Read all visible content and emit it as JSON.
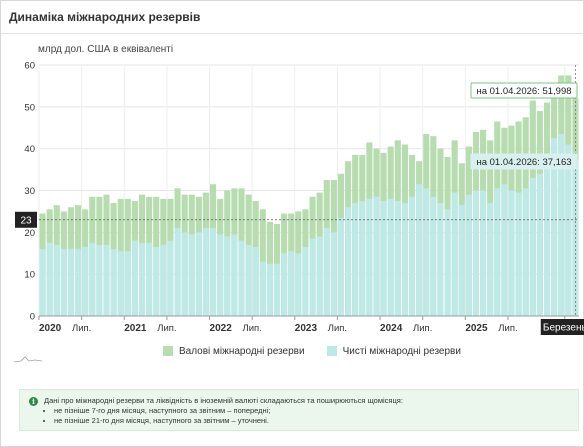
{
  "page": {
    "title": "Динаміка міжнародних резервів",
    "unit_label": "млрд дол. США в еквіваленті"
  },
  "colors": {
    "gross": "#b7dcb0",
    "net": "#bfe9e7",
    "tooltip_gross_border": "#77c77f",
    "tooltip_net_bg": "#d8f1ef",
    "axis_label_dark": "#222222",
    "grid": "#e6e6e6"
  },
  "legend": {
    "gross_label": "Валові міжнародні резерви",
    "net_label": "Чисті міжнародні резерви"
  },
  "tooltips": {
    "gross": "на 01.04.2026: 51,998",
    "net": "на 01.04.2026: 37,163"
  },
  "crosshair": {
    "value_label": "23"
  },
  "note": {
    "icon": "info-icon",
    "intro": "Дані про міжнародні резерви та ліквідність в іноземній валюті складаються та поширюються щомісяця:",
    "bullet1": "не пізніше 7-го дня місяця, наступного за звітним – попередні;",
    "bullet2": "не пізніше 21-го дня місяця, наступного за звітним – уточнені."
  },
  "chart_data": {
    "type": "bar",
    "ylim": [
      0,
      60
    ],
    "yticks": [
      0,
      10,
      20,
      30,
      40,
      50,
      60
    ],
    "ylabel": "млрд дол. США в еквіваленті",
    "grid": true,
    "x_tick_labels": [
      "2020",
      "Лип.",
      "2021",
      "Лип.",
      "2022",
      "Лип.",
      "2023",
      "Лип.",
      "2024",
      "Лип.",
      "2025",
      "Лип.",
      "Березень"
    ],
    "x_tick_months": [
      0,
      6,
      12,
      18,
      24,
      30,
      36,
      42,
      48,
      54,
      60,
      66,
      74
    ],
    "highlighted_tick": "Березень",
    "start_month": "2020-01",
    "series": [
      {
        "name": "Валові міжнародні резерви",
        "values": [
          24.5,
          25.5,
          26.5,
          25.0,
          26.0,
          26.5,
          25.5,
          28.5,
          28.5,
          29.0,
          27.0,
          28.0,
          28.0,
          27.5,
          29.0,
          28.5,
          28.5,
          28.0,
          28.0,
          30.5,
          29.0,
          29.0,
          28.5,
          29.5,
          31.5,
          28.0,
          30.0,
          30.5,
          30.5,
          29.0,
          27.5,
          25.5,
          22.5,
          22.0,
          24.5,
          24.5,
          25.0,
          25.5,
          28.5,
          29.5,
          32.5,
          32.5,
          34.0,
          37.0,
          38.5,
          38.5,
          41.5,
          40.0,
          39.0,
          40.5,
          42.0,
          41.0,
          38.5,
          37.0,
          43.5,
          43.0,
          40.0,
          38.0,
          42.0,
          36.5,
          40.5,
          44.0,
          44.5,
          42.0,
          46.5,
          45.0,
          45.5,
          46.5,
          47.5,
          51.5,
          49.0,
          51.0,
          55.0,
          57.5,
          57.5,
          52.0
        ]
      },
      {
        "name": "Чисті міжнародні резерви",
        "values": [
          16.0,
          17.5,
          17.0,
          16.0,
          16.0,
          16.0,
          16.5,
          17.5,
          17.0,
          17.0,
          16.0,
          15.5,
          15.5,
          18.0,
          17.5,
          17.5,
          16.5,
          17.0,
          18.0,
          21.0,
          20.0,
          19.5,
          20.0,
          21.0,
          21.0,
          19.5,
          19.0,
          19.5,
          18.0,
          17.0,
          16.5,
          13.0,
          12.5,
          12.5,
          15.0,
          15.5,
          15.0,
          16.5,
          18.5,
          19.0,
          21.0,
          20.0,
          23.5,
          26.0,
          27.0,
          27.5,
          28.0,
          28.5,
          27.5,
          28.0,
          27.5,
          27.0,
          28.5,
          31.5,
          30.5,
          28.5,
          27.0,
          25.5,
          29.5,
          26.5,
          29.0,
          30.0,
          30.0,
          27.0,
          30.5,
          31.5,
          30.0,
          29.5,
          30.5,
          33.0,
          34.0,
          35.5,
          42.5,
          43.5,
          41.0,
          37.163
        ]
      }
    ]
  }
}
